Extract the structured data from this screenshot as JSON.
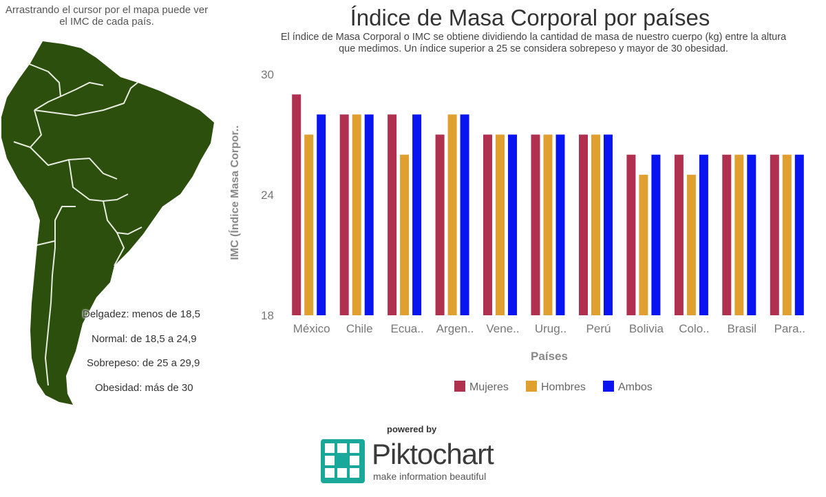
{
  "map": {
    "hint": "Arrastrando el cursor por el mapa puede ver el IMC de cada país.",
    "land_color": "#2d4f0d",
    "border_color": "#e8ece0",
    "legend": [
      "Delgadez: menos de 18,5",
      "Normal: de 18,5 a 24,9",
      "Sobrepeso: de 25 a 29,9",
      "Obesidad: más de 30"
    ]
  },
  "chart_data": {
    "type": "bar",
    "title": "Índice de Masa Corporal por países",
    "subtitle": "El índice de Masa Corporal o IMC se obtiene dividiendo la cantidad de masa de nuestro cuerpo (kg) entre la altura que medimos. Un índice superior a 25 se considera sobrepeso y mayor de 30 obesidad.",
    "xlabel": "Países",
    "ylabel": "IMC (Índice Masa Corpor..",
    "ylim": [
      18,
      30
    ],
    "yticks": [
      "18",
      "24",
      "30"
    ],
    "grid": false,
    "legend_position": "bottom",
    "categories": [
      "México",
      "Chile",
      "Ecua..",
      "Argen..",
      "Vene..",
      "Urug..",
      "Perú",
      "Bolivia",
      "Colo..",
      "Brasil",
      "Para.."
    ],
    "series": [
      {
        "name": "Mujeres",
        "color": "#b03050",
        "values": [
          29,
          28,
          28,
          27,
          27,
          27,
          27,
          26,
          26,
          26,
          26
        ]
      },
      {
        "name": "Hombres",
        "color": "#e0a030",
        "values": [
          27,
          28,
          26,
          28,
          27,
          27,
          27,
          25,
          25,
          26,
          26
        ]
      },
      {
        "name": "Ambos",
        "color": "#0a14f0",
        "values": [
          28,
          28,
          28,
          28,
          27,
          27,
          27,
          26,
          26,
          26,
          26
        ]
      }
    ]
  },
  "footer": {
    "powered_by": "powered by",
    "brand": "Piktochart",
    "tagline": "make information beautiful",
    "logo_color": "#19a89a"
  }
}
